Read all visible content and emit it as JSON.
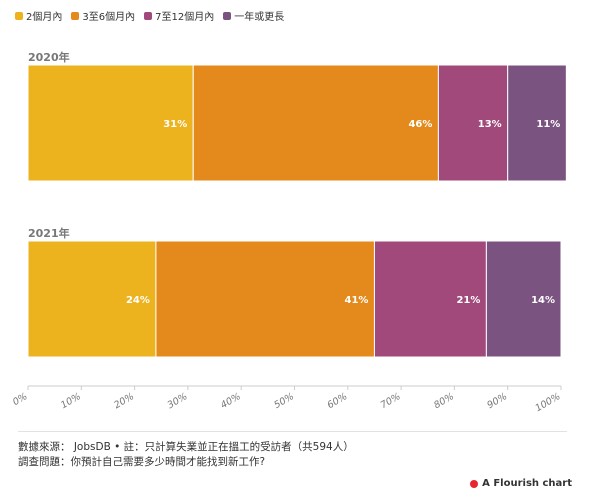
{
  "chart_data": {
    "type": "bar",
    "stacked": true,
    "orientation": "horizontal",
    "categories": [
      "2020年",
      "2021年"
    ],
    "series": [
      {
        "name": "2個月內",
        "color": "#ecb31e",
        "values": [
          31,
          24
        ],
        "labels": [
          "31%",
          "24%"
        ]
      },
      {
        "name": "3至6個月內",
        "color": "#e48a1d",
        "values": [
          46,
          41
        ],
        "labels": [
          "46%",
          "41%"
        ]
      },
      {
        "name": "7至12個月內",
        "color": "#a0497a",
        "values": [
          13,
          21
        ],
        "labels": [
          "13%",
          "21%"
        ]
      },
      {
        "name": "一年或更長",
        "color": "#7b5380",
        "values": [
          11,
          14
        ],
        "labels": [
          "11%",
          "14%"
        ]
      }
    ],
    "xlim": [
      0,
      100
    ],
    "x_ticks": [
      "0%",
      "10%",
      "20%",
      "30%",
      "40%",
      "50%",
      "60%",
      "70%",
      "80%",
      "90%",
      "100%"
    ],
    "legend_position": "top-left",
    "grid": false
  },
  "footer": {
    "source": "數據來源： JobsDB • 註：只計算失業並正在搵工的受訪者（共594人）",
    "question": "調查問題：你預計自己需要多少時間才能找到新工作?"
  },
  "brand": {
    "label": "A Flourish chart"
  }
}
